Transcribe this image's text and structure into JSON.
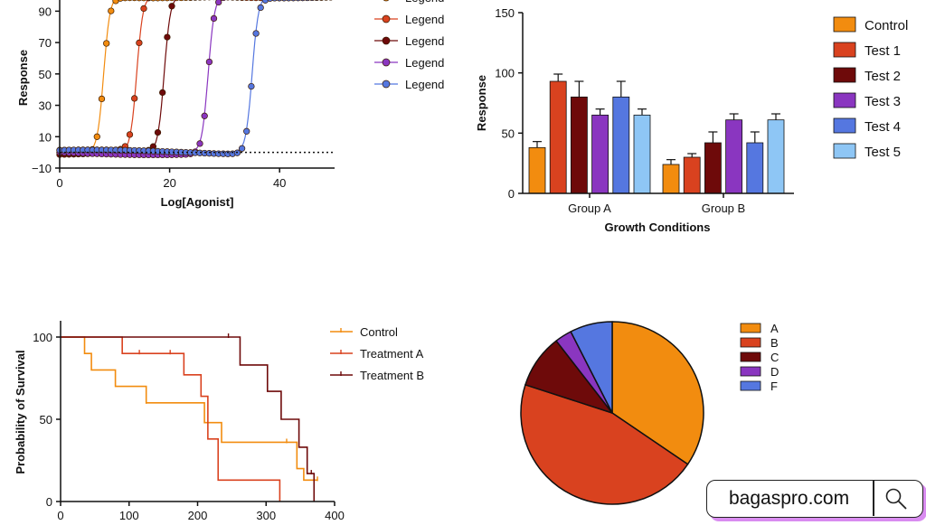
{
  "chart_data": [
    {
      "id": "dose_response",
      "type": "scatter",
      "xlabel": "Log[Agonist]",
      "ylabel": "Response",
      "xlim": [
        0,
        50
      ],
      "ylim": [
        -10,
        100
      ],
      "xticks": [
        0,
        20,
        40
      ],
      "yticks": [
        -10,
        10,
        30,
        50,
        70,
        90
      ],
      "xtick_labels": [
        "0",
        "20",
        "40"
      ],
      "ytick_labels": [
        "−10",
        "10",
        "30",
        "50",
        "70",
        "90"
      ],
      "baseline_y": 0,
      "series": [
        {
          "name": "Legend",
          "color": "#f28c0f",
          "ec50": 8,
          "slope": 0.8
        },
        {
          "name": "Legend",
          "color": "#d9421f",
          "ec50": 14,
          "slope": 0.8
        },
        {
          "name": "Legend",
          "color": "#6e0a0a",
          "ec50": 19,
          "slope": 0.8
        },
        {
          "name": "Legend",
          "color": "#8a36c0",
          "ec50": 27,
          "slope": 0.8
        },
        {
          "name": "Legend",
          "color": "#5577e0",
          "ec50": 35,
          "slope": 0.8
        }
      ]
    },
    {
      "id": "growth_bars",
      "type": "bar",
      "xlabel": "Growth Conditions",
      "ylabel": "Response",
      "ylim": [
        0,
        150
      ],
      "yticks": [
        0,
        50,
        100,
        150
      ],
      "ytick_labels": [
        "0",
        "50",
        "100",
        "150"
      ],
      "categories": [
        "Group A",
        "Group B"
      ],
      "series": [
        {
          "name": "Control",
          "color": "#f28c0f",
          "values": [
            38,
            24
          ],
          "errors": [
            5,
            4
          ]
        },
        {
          "name": "Test 1",
          "color": "#d9421f",
          "values": [
            93,
            30
          ],
          "errors": [
            6,
            3
          ]
        },
        {
          "name": "Test 2",
          "color": "#6e0a0a",
          "values": [
            80,
            42
          ],
          "errors": [
            13,
            9
          ]
        },
        {
          "name": "Test 3",
          "color": "#8a36c0",
          "values": [
            65,
            61
          ],
          "errors": [
            5,
            5
          ]
        },
        {
          "name": "Test 4",
          "color": "#5577e0",
          "values": [
            80,
            42
          ],
          "errors": [
            13,
            9
          ]
        },
        {
          "name": "Test 5",
          "color": "#8ec6f5",
          "values": [
            65,
            61
          ],
          "errors": [
            5,
            5
          ]
        }
      ]
    },
    {
      "id": "survival",
      "type": "line",
      "ylabel": "Probability of Survival",
      "xlim": [
        0,
        400
      ],
      "ylim": [
        0,
        100
      ],
      "xticks": [
        0,
        100,
        200,
        300,
        400
      ],
      "yticks": [
        0,
        50,
        100
      ],
      "xtick_labels": [
        "0",
        "100",
        "200",
        "300",
        "400"
      ],
      "ytick_labels": [
        "0",
        "50",
        "100"
      ],
      "series": [
        {
          "name": "Control",
          "color": "#f28c0f",
          "steps": [
            [
              0,
              100
            ],
            [
              35,
              90
            ],
            [
              45,
              80
            ],
            [
              80,
              70
            ],
            [
              125,
              60
            ],
            [
              210,
              48
            ],
            [
              235,
              36
            ],
            [
              345,
              20
            ],
            [
              355,
              13
            ],
            [
              375,
              13
            ]
          ],
          "censor": [
            [
              125,
              60
            ],
            [
              330,
              36
            ],
            [
              375,
              13
            ]
          ]
        },
        {
          "name": "Treatment A",
          "color": "#d9421f",
          "steps": [
            [
              0,
              100
            ],
            [
              90,
              90
            ],
            [
              180,
              77
            ],
            [
              205,
              64
            ],
            [
              215,
              38
            ],
            [
              230,
              13
            ],
            [
              320,
              0
            ]
          ],
          "censor": [
            [
              115,
              90
            ],
            [
              160,
              90
            ]
          ]
        },
        {
          "name": "Treatment B",
          "color": "#6e0a0a",
          "steps": [
            [
              0,
              100
            ],
            [
              262,
              83
            ],
            [
              302,
              67
            ],
            [
              322,
              50
            ],
            [
              348,
              33
            ],
            [
              360,
              17
            ],
            [
              370,
              0
            ]
          ],
          "censor": [
            [
              245,
              100
            ],
            [
              366,
              17
            ]
          ]
        }
      ]
    },
    {
      "id": "composition_pie",
      "type": "pie",
      "labels": [
        "A",
        "B",
        "C",
        "D",
        "F"
      ],
      "values": [
        34.5,
        45.5,
        9.5,
        3,
        7.5
      ],
      "colors": [
        "#f28c0f",
        "#d9421f",
        "#6e0a0a",
        "#8a36c0",
        "#5577e0"
      ]
    }
  ],
  "search": {
    "text": "bagaspro.com"
  }
}
